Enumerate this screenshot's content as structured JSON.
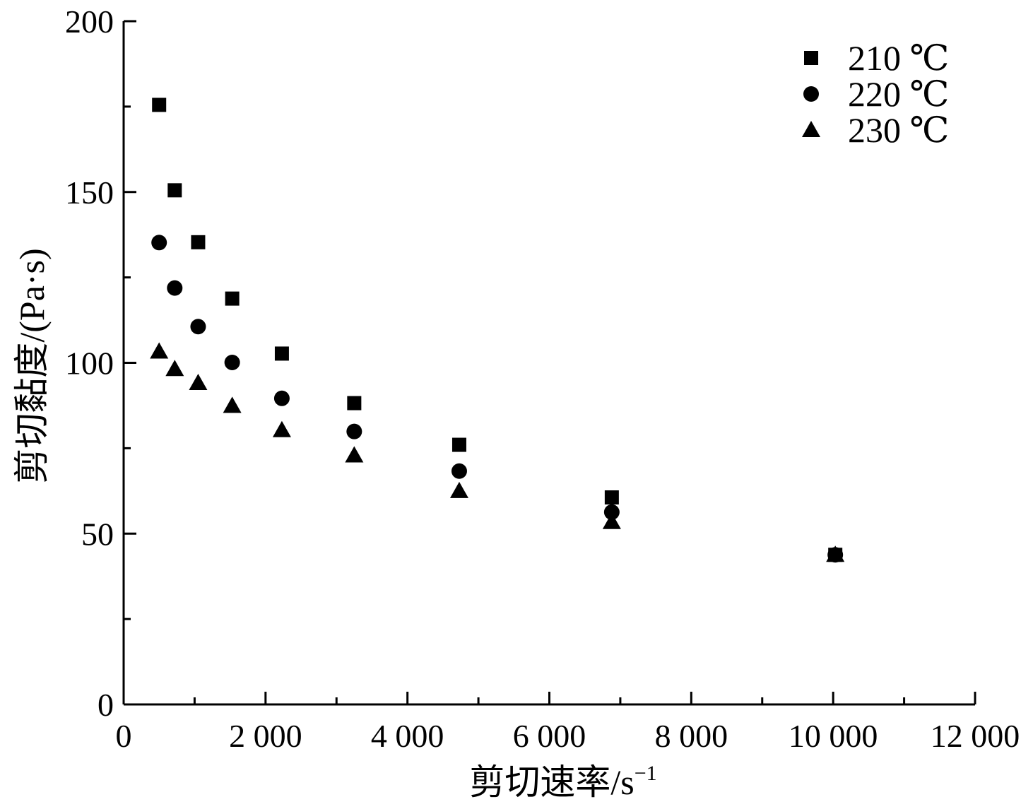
{
  "chart_data": {
    "type": "scatter",
    "xlabel": "剪切速率/s",
    "xlabel_sup": "−1",
    "ylabel": "剪切黏度/(Pa·s)",
    "xlim": [
      0,
      12000
    ],
    "ylim": [
      0,
      200
    ],
    "x_ticks": [
      0,
      2000,
      4000,
      6000,
      8000,
      10000,
      12000
    ],
    "x_tick_labels": [
      "0",
      "2 000",
      "4 000",
      "6 000",
      "8 000",
      "10 000",
      "12 000"
    ],
    "y_ticks": [
      0,
      50,
      100,
      150,
      200
    ],
    "y_tick_labels": [
      "0",
      "50",
      "100",
      "150",
      "200"
    ],
    "grid": false,
    "legend_position": "top-right",
    "series": [
      {
        "name": "210 ℃",
        "marker": "square",
        "x": [
          500,
          720,
          1050,
          1530,
          2230,
          3250,
          4730,
          6880,
          10030
        ],
        "y": [
          175.5,
          150.5,
          135.3,
          118.8,
          102.7,
          88.2,
          76.0,
          60.6,
          43.8
        ]
      },
      {
        "name": "220 ℃",
        "marker": "circle",
        "x": [
          500,
          720,
          1050,
          1530,
          2230,
          3250,
          4730,
          6880,
          10030
        ],
        "y": [
          135.2,
          121.9,
          110.6,
          100.1,
          89.6,
          79.9,
          68.3,
          56.3,
          43.8
        ]
      },
      {
        "name": "230 ℃",
        "marker": "triangle",
        "x": [
          500,
          720,
          1050,
          1530,
          2230,
          3250,
          4730,
          6880,
          10030
        ],
        "y": [
          103.3,
          98.2,
          94.1,
          87.4,
          80.3,
          72.9,
          62.5,
          53.4,
          43.8
        ]
      }
    ],
    "colors": {
      "marker": "#000000",
      "axis": "#000000"
    }
  }
}
